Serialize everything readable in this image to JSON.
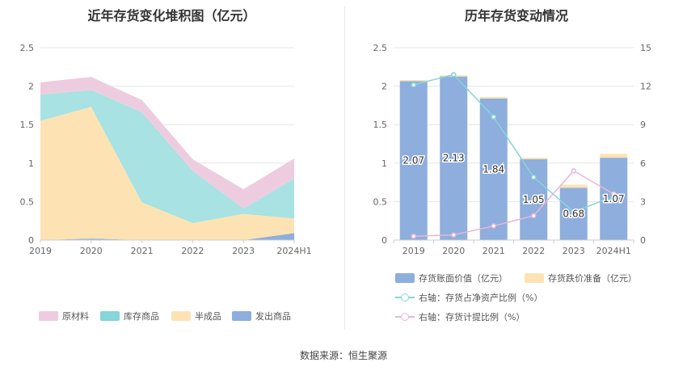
{
  "left_chart": {
    "title": "近年存货变化堆积图（亿元）",
    "legend_labels": [
      "原材料",
      "库存商品",
      "半成品",
      "发出商品"
    ],
    "chart_data": {
      "type": "area",
      "stacked": true,
      "x": [
        "2019",
        "2020",
        "2021",
        "2022",
        "2023",
        "2024H1"
      ],
      "ylim": [
        0,
        2.5
      ],
      "yticks": [
        "0",
        "0.5",
        "1",
        "1.5",
        "2",
        "2.5"
      ],
      "series": [
        {
          "name": "发出商品",
          "color": "#8eaedd",
          "values": [
            0.0,
            0.02,
            0.0,
            0.0,
            0.0,
            0.09
          ]
        },
        {
          "name": "半成品",
          "color": "#fde3b3",
          "values": [
            1.55,
            1.71,
            0.49,
            0.22,
            0.34,
            0.19
          ]
        },
        {
          "name": "库存商品",
          "color": "#a8e2e2",
          "values": [
            0.34,
            0.22,
            1.17,
            0.68,
            0.07,
            0.52
          ]
        },
        {
          "name": "原材料",
          "color": "#eeccdf",
          "values": [
            0.16,
            0.17,
            0.16,
            0.15,
            0.25,
            0.26
          ]
        }
      ]
    }
  },
  "right_chart": {
    "title": "历年存货变动情况",
    "legend_labels": [
      "存货账面价值（亿元）",
      "存货跌价准备（亿元）",
      "右轴：存货占净资产比例（%）",
      "右轴：存货计提比例（%）"
    ],
    "bar_labels": [
      "2.07",
      "2.13",
      "1.84",
      "1.05",
      "0.68",
      "1.07"
    ],
    "chart_data": {
      "type": "bar",
      "categories": [
        "2019",
        "2020",
        "2021",
        "2022",
        "2023",
        "2024H1"
      ],
      "ylim": [
        0,
        2.5
      ],
      "y2lim": [
        0,
        15
      ],
      "yticks": [
        "0",
        "0.5",
        "1",
        "1.5",
        "2",
        "2.5"
      ],
      "y2ticks": [
        "0",
        "3",
        "6",
        "9",
        "12",
        "15"
      ],
      "series": [
        {
          "name": "存货账面价值（亿元）",
          "type": "bar",
          "color": "#8eaedd",
          "values": [
            2.07,
            2.13,
            1.84,
            1.05,
            0.68,
            1.07
          ]
        },
        {
          "name": "存货跌价准备（亿元）",
          "type": "bar",
          "color": "#fde3b3",
          "values": [
            0.01,
            0.01,
            0.02,
            0.02,
            0.04,
            0.05
          ]
        },
        {
          "name": "右轴：存货占净资产比例（%）",
          "type": "line",
          "axis": "right",
          "color": "#84d6d8",
          "values": [
            12.1,
            12.9,
            9.6,
            4.9,
            2.2,
            3.4
          ]
        },
        {
          "name": "右轴：存货计提比例（%）",
          "type": "line",
          "axis": "right",
          "color": "#e8b7d7",
          "values": [
            0.3,
            0.4,
            1.1,
            1.9,
            5.4,
            3.6
          ]
        }
      ]
    }
  },
  "footer": "数据来源：恒生聚源"
}
